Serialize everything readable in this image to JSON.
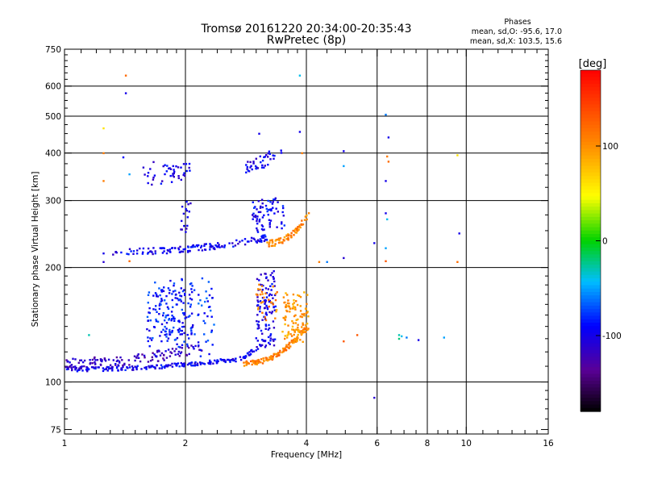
{
  "title": {
    "line1": "Tromsø 20161220 20:34:00-20:35:43",
    "line2": "RwPretec (8p)"
  },
  "phase_info": {
    "header": "Phases",
    "line_o": "mean, sd,O: -95.6, 17.0",
    "line_x": "mean, sd,X: 103.5, 15.6"
  },
  "colorbar": {
    "label": "[deg]",
    "range": [
      -180,
      180
    ],
    "ticks": [
      {
        "value": 100,
        "label": "100"
      },
      {
        "value": 0,
        "label": "0"
      },
      {
        "value": -100,
        "label": "-100"
      }
    ]
  },
  "chart_data": {
    "type": "scatter",
    "xlabel": "Frequency [MHz]",
    "ylabel": "Stationary phase Virtual Height [km]",
    "xscale": "log",
    "yscale": "log",
    "xlim": [
      1,
      16
    ],
    "ylim": [
      73,
      750
    ],
    "grid": true,
    "x_ticks": [
      {
        "value": 1,
        "label": "1"
      },
      {
        "value": 2,
        "label": "2"
      },
      {
        "value": 4,
        "label": "4"
      },
      {
        "value": 6,
        "label": "6"
      },
      {
        "value": 8,
        "label": "8"
      },
      {
        "value": 10,
        "label": "10"
      },
      {
        "value": 16,
        "label": "16"
      }
    ],
    "x_minor_ticks": [
      1.1,
      1.2,
      1.3,
      1.4,
      1.5,
      1.6,
      1.7,
      1.8,
      1.9,
      2.2,
      2.4,
      2.6,
      2.8,
      3,
      3.2,
      3.4,
      3.6,
      3.8,
      4.5,
      5,
      5.5,
      6.5,
      7,
      7.5,
      8.5,
      9,
      9.5,
      11,
      12,
      13,
      14,
      15
    ],
    "x_grid": [
      2,
      4,
      6,
      8,
      10
    ],
    "y_ticks": [
      {
        "value": 75,
        "label": "75"
      },
      {
        "value": 100,
        "label": "100"
      },
      {
        "value": 200,
        "label": "200"
      },
      {
        "value": 300,
        "label": "300"
      },
      {
        "value": 400,
        "label": "400"
      },
      {
        "value": 500,
        "label": "500"
      },
      {
        "value": 600,
        "label": "600"
      },
      {
        "value": 750,
        "label": "750"
      }
    ],
    "y_minor_ticks": [
      80,
      85,
      90,
      95,
      110,
      120,
      130,
      140,
      150,
      160,
      170,
      180,
      190,
      225,
      250,
      275,
      325,
      350,
      375,
      425,
      450,
      475,
      525,
      550,
      575,
      625,
      650,
      675,
      700,
      725
    ],
    "y_grid": [
      100,
      200,
      300,
      400,
      500,
      600
    ],
    "series": [
      {
        "traces": [
          {
            "x0": 1.0,
            "x1": 2.5,
            "y0": 108,
            "y1": 114,
            "phase": -98,
            "n": 150,
            "jitter": 2.5,
            "scatter": 0
          },
          {
            "x0": 2.5,
            "x1": 3.15,
            "y0": 114,
            "y1": 128,
            "phase": -98,
            "n": 45,
            "jitter": 2.5,
            "scatter": 0
          },
          {
            "x0": 1.0,
            "x1": 2.2,
            "y0": 112,
            "y1": 124,
            "phase": -118,
            "n": 130,
            "jitter": 7,
            "scatter": 0
          },
          {
            "x0": 1.6,
            "x1": 2.1,
            "y0": 128,
            "y1": 185,
            "phase": -85,
            "n": 180,
            "jitter": 10,
            "scatter": 1
          },
          {
            "x0": 2.15,
            "x1": 2.35,
            "y0": 120,
            "y1": 185,
            "phase": -80,
            "n": 35,
            "jitter": 8,
            "scatter": 1
          },
          {
            "x0": 3.0,
            "x1": 3.35,
            "y0": 125,
            "y1": 195,
            "phase": -100,
            "n": 110,
            "jitter": 8,
            "scatter": 1
          },
          {
            "x0": 1.3,
            "x1": 3.2,
            "y0": 220,
            "y1": 240,
            "phase": -98,
            "n": 140,
            "jitter": 4,
            "scatter": 0
          },
          {
            "x0": 2.95,
            "x1": 3.55,
            "y0": 255,
            "y1": 300,
            "phase": -95,
            "n": 70,
            "jitter": 9,
            "scatter": 1
          },
          {
            "x0": 1.55,
            "x1": 2.05,
            "y0": 340,
            "y1": 370,
            "phase": -100,
            "n": 45,
            "jitter": 7,
            "scatter": 1
          },
          {
            "x0": 2.8,
            "x1": 3.45,
            "y0": 370,
            "y1": 415,
            "phase": -100,
            "n": 40,
            "jitter": 8,
            "scatter": 0
          },
          {
            "x0": 1.95,
            "x1": 2.05,
            "y0": 240,
            "y1": 305,
            "phase": -100,
            "n": 16,
            "jitter": 5,
            "scatter": 1
          },
          {
            "x0": 2.8,
            "x1": 4.0,
            "y0": 112,
            "y1": 140,
            "phase": 110,
            "n": 130,
            "jitter": 3,
            "scatter": 0
          },
          {
            "x0": 3.5,
            "x1": 4.05,
            "y0": 130,
            "y1": 170,
            "phase": 95,
            "n": 110,
            "jitter": 6,
            "scatter": 1
          },
          {
            "x0": 3.0,
            "x1": 3.4,
            "y0": 150,
            "y1": 180,
            "phase": 105,
            "n": 30,
            "jitter": 7,
            "scatter": 1
          },
          {
            "x0": 3.2,
            "x1": 4.05,
            "y0": 232,
            "y1": 275,
            "phase": 105,
            "n": 70,
            "jitter": 4,
            "scatter": 0
          }
        ],
        "points": [
          {
            "x": 1.42,
            "y": 575,
            "phase": -100
          },
          {
            "x": 1.42,
            "y": 640,
            "phase": 120
          },
          {
            "x": 1.25,
            "y": 465,
            "phase": 60
          },
          {
            "x": 1.25,
            "y": 400,
            "phase": 110
          },
          {
            "x": 1.25,
            "y": 338,
            "phase": 110
          },
          {
            "x": 1.4,
            "y": 390,
            "phase": -90
          },
          {
            "x": 1.45,
            "y": 352,
            "phase": -50
          },
          {
            "x": 1.25,
            "y": 218,
            "phase": -100
          },
          {
            "x": 1.25,
            "y": 207,
            "phase": -110
          },
          {
            "x": 1.45,
            "y": 208,
            "phase": 120
          },
          {
            "x": 1.15,
            "y": 133,
            "phase": -30
          },
          {
            "x": 3.85,
            "y": 455,
            "phase": -100
          },
          {
            "x": 3.85,
            "y": 640,
            "phase": -40
          },
          {
            "x": 3.9,
            "y": 400,
            "phase": 110
          },
          {
            "x": 3.05,
            "y": 450,
            "phase": -100
          },
          {
            "x": 4.95,
            "y": 405,
            "phase": -100
          },
          {
            "x": 4.95,
            "y": 370,
            "phase": -50
          },
          {
            "x": 4.95,
            "y": 212,
            "phase": -110
          },
          {
            "x": 4.95,
            "y": 128,
            "phase": 130
          },
          {
            "x": 4.3,
            "y": 207,
            "phase": 110
          },
          {
            "x": 4.5,
            "y": 207,
            "phase": -60
          },
          {
            "x": 5.35,
            "y": 133,
            "phase": 130
          },
          {
            "x": 5.9,
            "y": 91,
            "phase": -110
          },
          {
            "x": 5.9,
            "y": 232,
            "phase": -100
          },
          {
            "x": 6.3,
            "y": 505,
            "phase": -60
          },
          {
            "x": 6.4,
            "y": 440,
            "phase": -100
          },
          {
            "x": 6.35,
            "y": 392,
            "phase": 110
          },
          {
            "x": 6.4,
            "y": 380,
            "phase": 120
          },
          {
            "x": 6.3,
            "y": 338,
            "phase": -100
          },
          {
            "x": 6.3,
            "y": 278,
            "phase": -100
          },
          {
            "x": 6.35,
            "y": 268,
            "phase": -40
          },
          {
            "x": 6.3,
            "y": 225,
            "phase": -50
          },
          {
            "x": 6.3,
            "y": 208,
            "phase": 130
          },
          {
            "x": 6.8,
            "y": 133,
            "phase": -30
          },
          {
            "x": 6.9,
            "y": 132,
            "phase": -40
          },
          {
            "x": 7.1,
            "y": 131,
            "phase": -60
          },
          {
            "x": 7.6,
            "y": 129,
            "phase": -100
          },
          {
            "x": 8.8,
            "y": 131,
            "phase": -50
          },
          {
            "x": 9.6,
            "y": 246,
            "phase": -100
          },
          {
            "x": 9.5,
            "y": 395,
            "phase": 60
          },
          {
            "x": 9.5,
            "y": 207,
            "phase": 120
          },
          {
            "x": 6.8,
            "y": 130,
            "phase": -20
          }
        ]
      }
    ]
  }
}
